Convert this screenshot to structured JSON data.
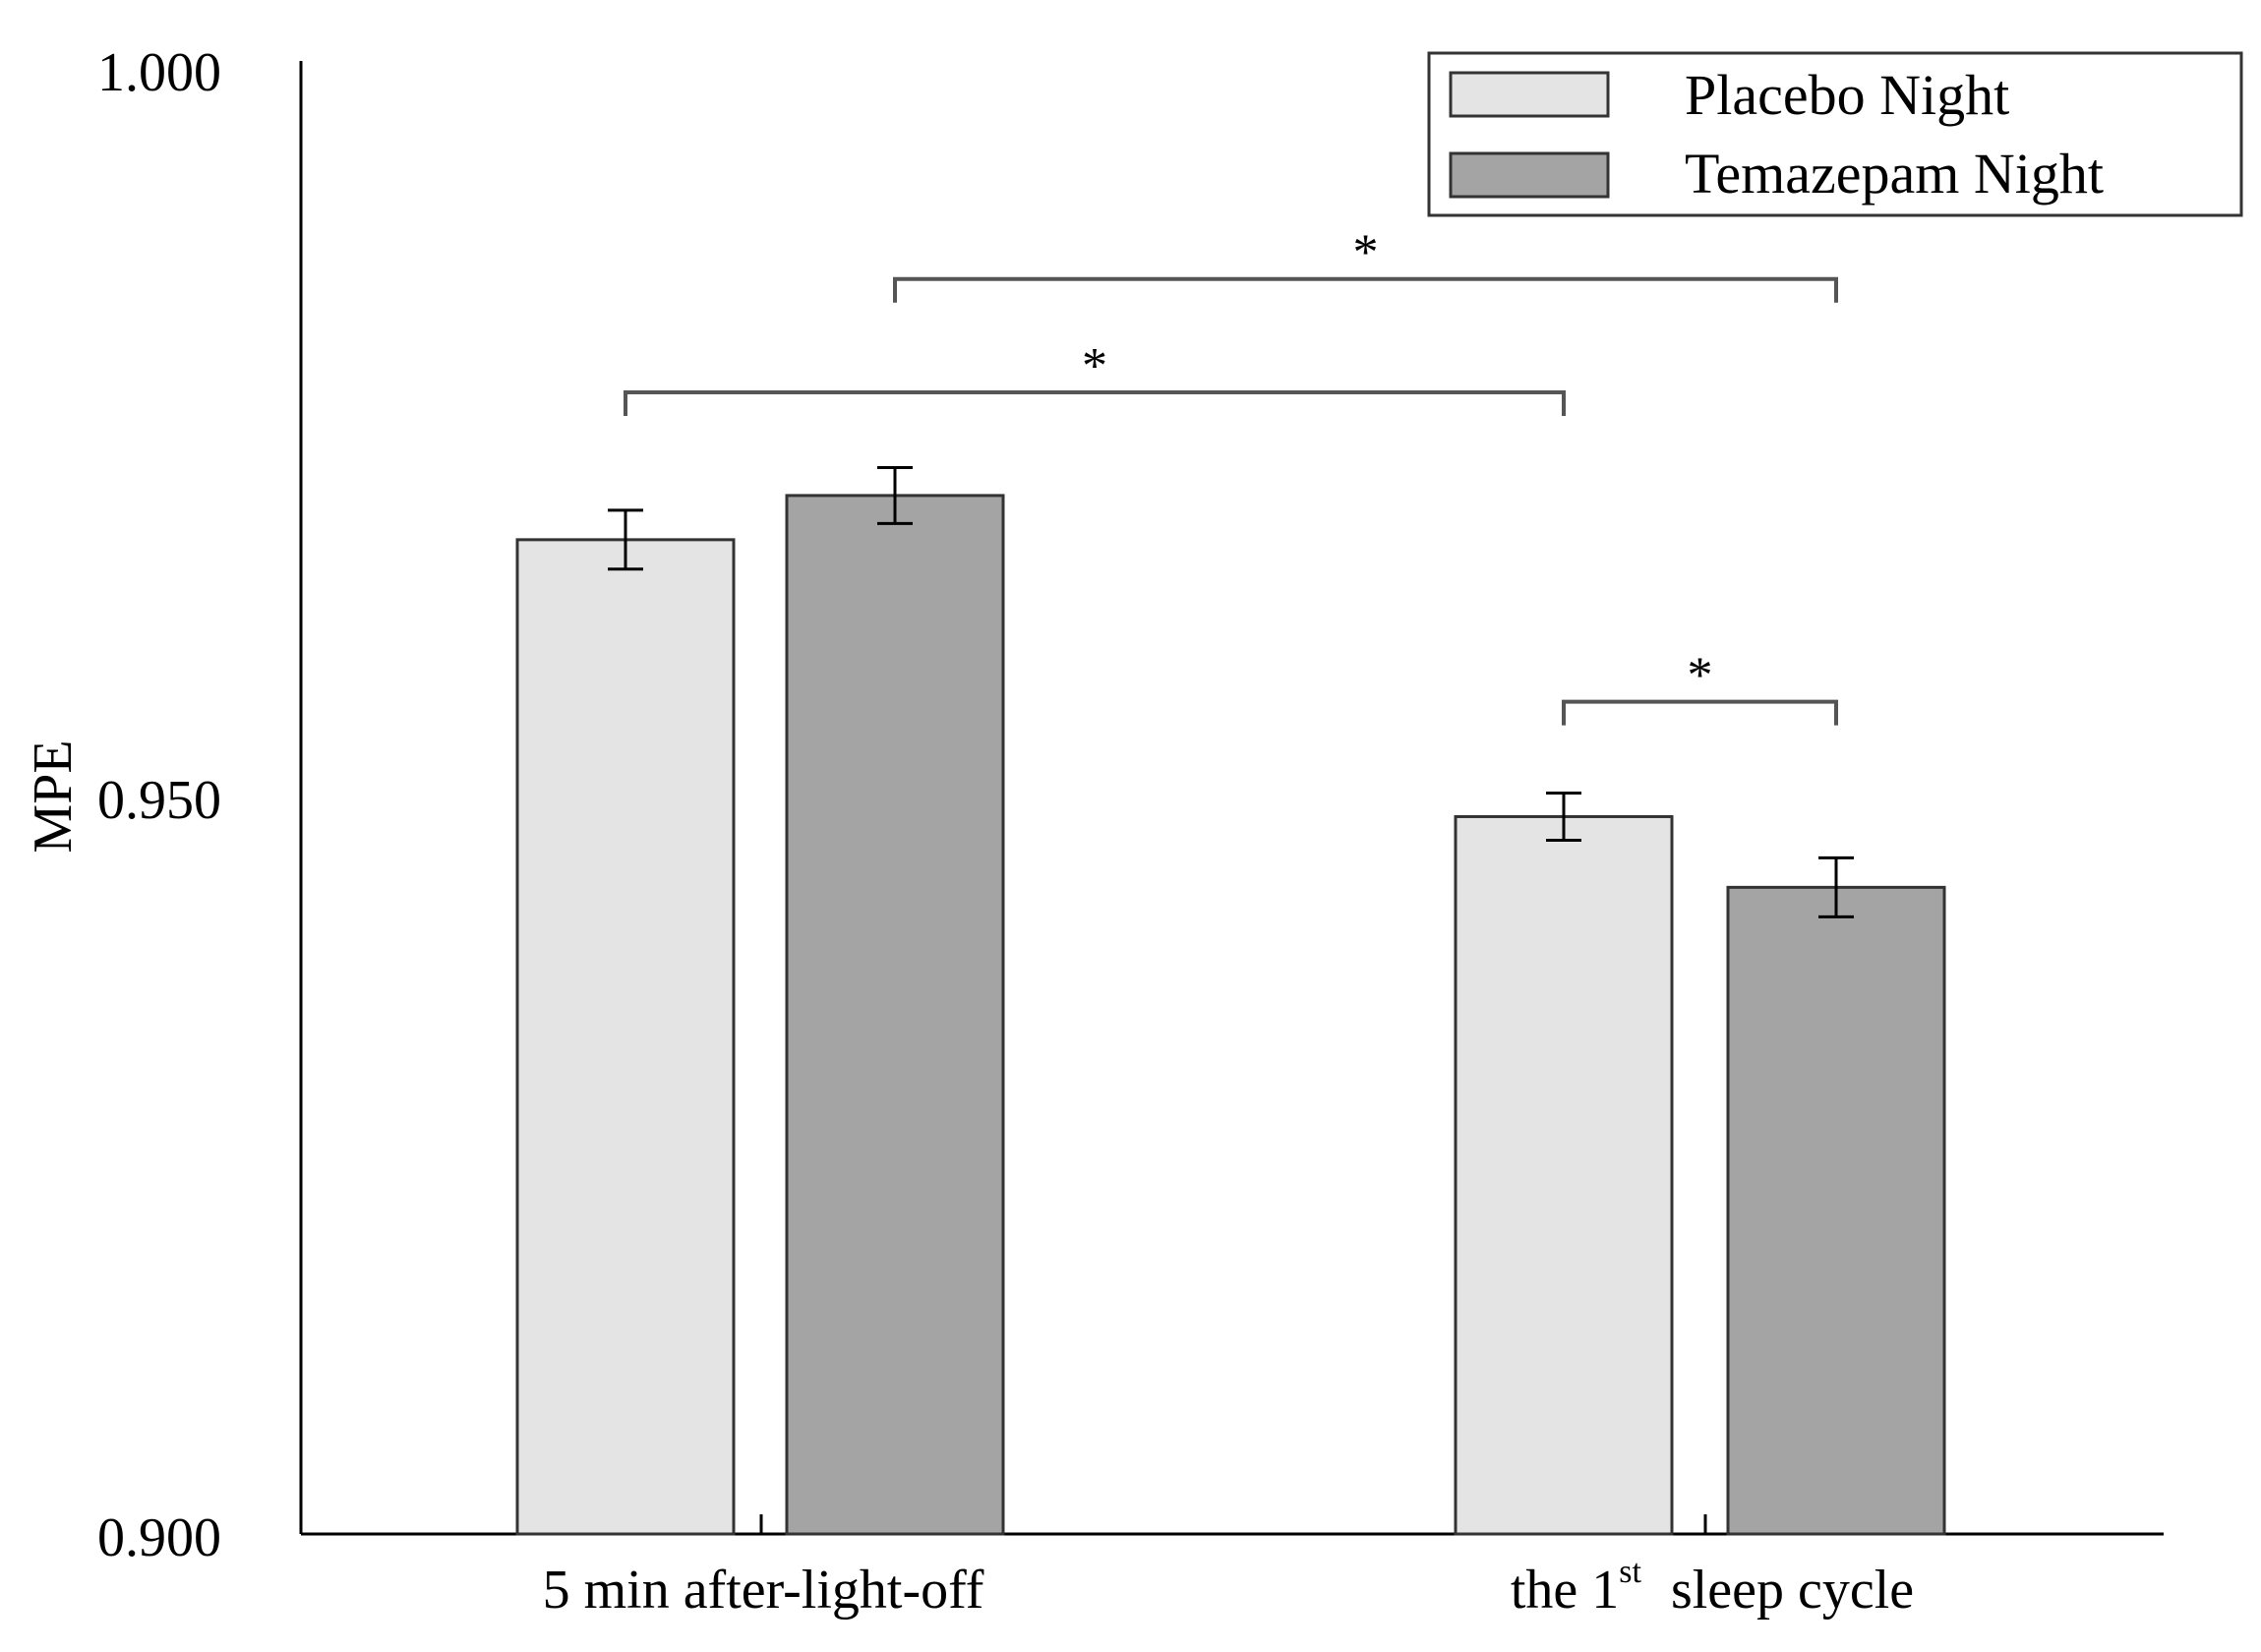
{
  "chart_data": {
    "type": "bar",
    "ylabel": "MPE",
    "ylim": [
      0.9,
      1.0
    ],
    "yticks": [
      "0.900",
      "0.950",
      "1.000"
    ],
    "categories": [
      {
        "label": "5 min after-light-off"
      },
      {
        "label_prefix": "the 1",
        "label_sup": "st",
        "label_suffix": "sleep cycle"
      }
    ],
    "series": [
      {
        "name": "Placebo Night",
        "color": "#e4e4e4",
        "values": [
          0.9675,
          0.9487
        ],
        "errors": [
          0.002,
          0.0016
        ]
      },
      {
        "name": "Temazepam Night",
        "color": "#a4a4a4",
        "values": [
          0.9705,
          0.9439
        ],
        "errors": [
          0.0019,
          0.002
        ]
      }
    ],
    "annotations": [
      {
        "text": "*",
        "from": "5 min after-light-off / Placebo Night",
        "to": "the 1st sleep cycle / Placebo Night",
        "level": 0.9775
      },
      {
        "text": "*",
        "from": "5 min after-light-off / Temazepam Night",
        "to": "the 1st sleep cycle / Temazepam Night",
        "level": 0.9852
      },
      {
        "text": "*",
        "from": "the 1st sleep cycle / Placebo Night",
        "to": "the 1st sleep cycle / Temazepam Night",
        "level": 0.9565
      }
    ],
    "legend_position": "top-right"
  }
}
